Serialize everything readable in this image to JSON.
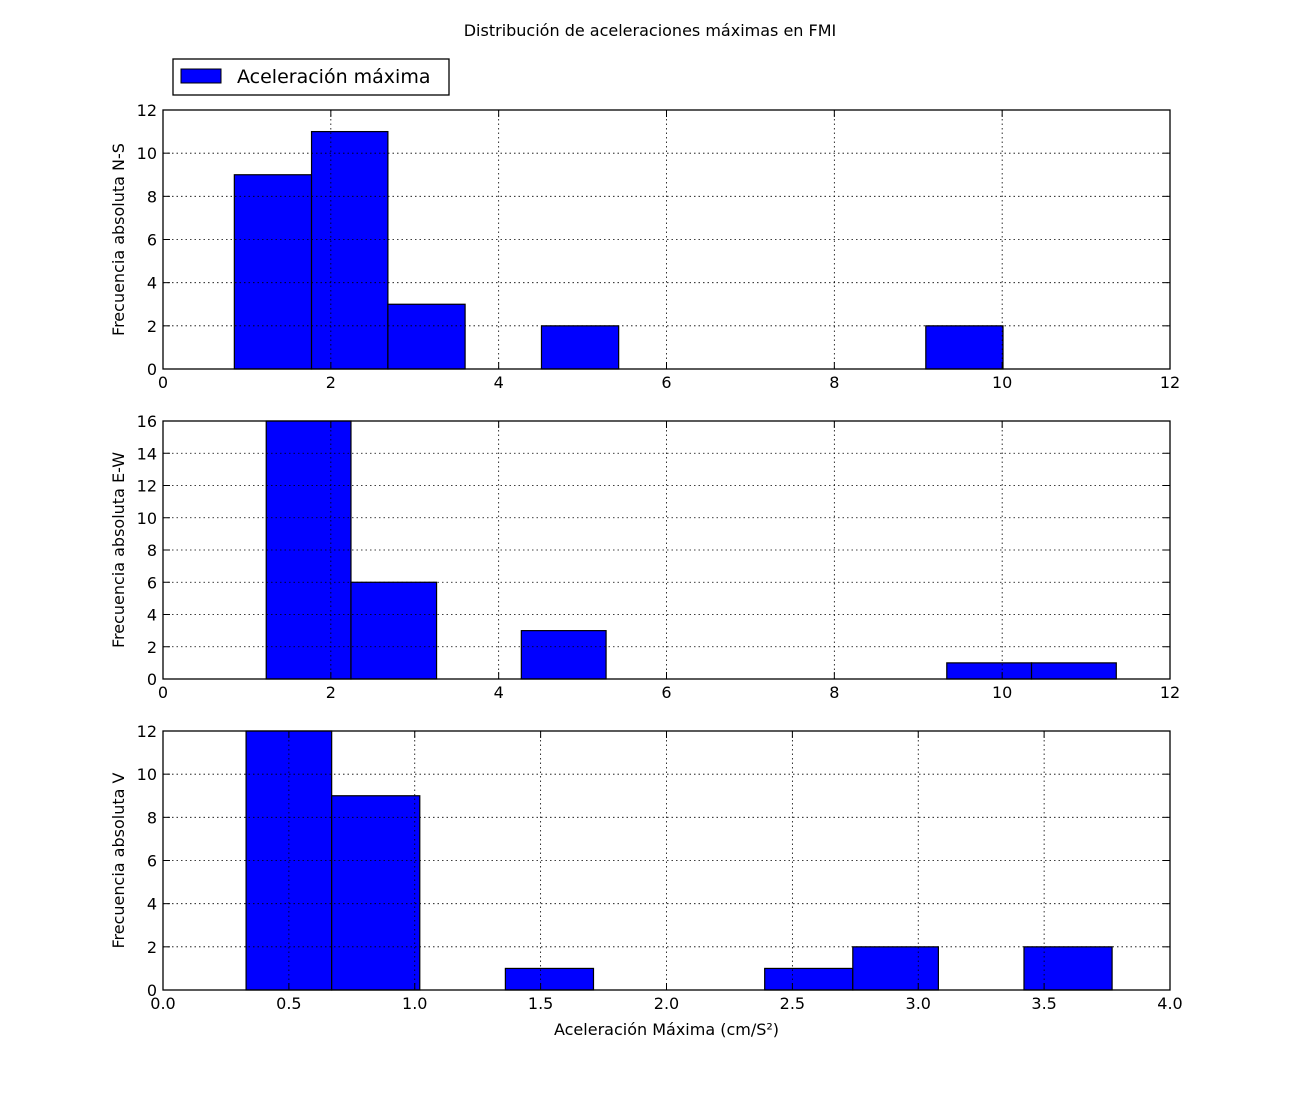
{
  "figure": {
    "title": "Distribución de aceleraciones máximas en FMI",
    "legend": {
      "label": "Aceleración máxima",
      "color": "#0000ff",
      "placement": "top-left"
    }
  },
  "chart_data": [
    {
      "type": "bar",
      "subtype": "histogram",
      "ylabel": "Frecuencia absoluta N-S",
      "xlabel": "",
      "xlim": [
        0,
        12
      ],
      "ylim": [
        0,
        12
      ],
      "xticks": [
        0,
        2,
        4,
        6,
        8,
        10,
        12
      ],
      "yticks": [
        0,
        2,
        4,
        6,
        8,
        10,
        12
      ],
      "grid": true,
      "bar_color": "#0000ff",
      "bins": [
        {
          "start": 0.85,
          "end": 1.77,
          "count": 9
        },
        {
          "start": 1.77,
          "end": 2.68,
          "count": 11
        },
        {
          "start": 2.68,
          "end": 3.6,
          "count": 3
        },
        {
          "start": 3.6,
          "end": 4.51,
          "count": 0
        },
        {
          "start": 4.51,
          "end": 5.43,
          "count": 2
        },
        {
          "start": 5.43,
          "end": 6.35,
          "count": 0
        },
        {
          "start": 6.35,
          "end": 7.26,
          "count": 0
        },
        {
          "start": 7.26,
          "end": 8.18,
          "count": 0
        },
        {
          "start": 8.18,
          "end": 9.09,
          "count": 0
        },
        {
          "start": 9.09,
          "end": 10.01,
          "count": 2
        }
      ]
    },
    {
      "type": "bar",
      "subtype": "histogram",
      "ylabel": "Frecuencia absoluta E-W",
      "xlabel": "",
      "xlim": [
        0,
        12
      ],
      "ylim": [
        0,
        16
      ],
      "xticks": [
        0,
        2,
        4,
        6,
        8,
        10,
        12
      ],
      "yticks": [
        0,
        2,
        4,
        6,
        8,
        10,
        12,
        14,
        16
      ],
      "grid": true,
      "bar_color": "#0000ff",
      "bins": [
        {
          "start": 1.23,
          "end": 2.24,
          "count": 16
        },
        {
          "start": 2.24,
          "end": 3.26,
          "count": 6
        },
        {
          "start": 3.26,
          "end": 4.27,
          "count": 0
        },
        {
          "start": 4.27,
          "end": 5.28,
          "count": 3
        },
        {
          "start": 5.28,
          "end": 6.3,
          "count": 0
        },
        {
          "start": 6.3,
          "end": 7.31,
          "count": 0
        },
        {
          "start": 7.31,
          "end": 8.32,
          "count": 0
        },
        {
          "start": 8.32,
          "end": 9.34,
          "count": 0
        },
        {
          "start": 9.34,
          "end": 10.35,
          "count": 1
        },
        {
          "start": 10.35,
          "end": 11.36,
          "count": 1
        }
      ]
    },
    {
      "type": "bar",
      "subtype": "histogram",
      "ylabel": "Frecuencia absoluta V",
      "xlabel": "Aceleración Máxima (cm/S²)",
      "xlim": [
        0,
        4
      ],
      "ylim": [
        0,
        12
      ],
      "xticks": [
        "0.0",
        "0.5",
        "1.0",
        "1.5",
        "2.0",
        "2.5",
        "3.0",
        "3.5",
        "4.0"
      ],
      "yticks": [
        0,
        2,
        4,
        6,
        8,
        10,
        12
      ],
      "grid": true,
      "bar_color": "#0000ff",
      "bins": [
        {
          "start": 0.33,
          "end": 0.67,
          "count": 12
        },
        {
          "start": 0.67,
          "end": 1.02,
          "count": 9
        },
        {
          "start": 1.02,
          "end": 1.36,
          "count": 0
        },
        {
          "start": 1.36,
          "end": 1.71,
          "count": 1
        },
        {
          "start": 1.71,
          "end": 2.05,
          "count": 0
        },
        {
          "start": 2.05,
          "end": 2.39,
          "count": 0
        },
        {
          "start": 2.39,
          "end": 2.74,
          "count": 1
        },
        {
          "start": 2.74,
          "end": 3.08,
          "count": 2
        },
        {
          "start": 3.08,
          "end": 3.42,
          "count": 0
        },
        {
          "start": 3.42,
          "end": 3.77,
          "count": 2
        }
      ]
    }
  ]
}
